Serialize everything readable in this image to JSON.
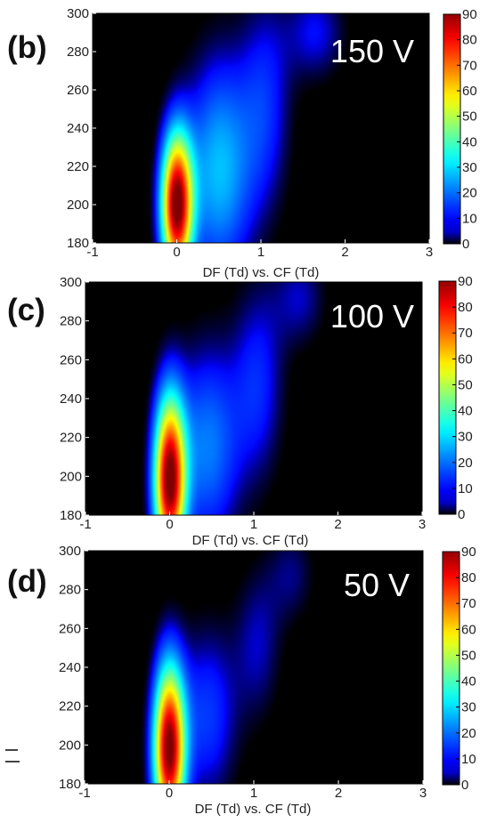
{
  "chart_data": [
    {
      "type": "heatmap",
      "panel_label": "(b)",
      "voltage_label": "150 V",
      "xlabel": "DF (Td) vs. CF (Td)",
      "ylabel": "",
      "xlim": [
        -1,
        3
      ],
      "ylim": [
        180,
        300
      ],
      "xticks": [
        "-1",
        "0",
        "1",
        "2",
        "3"
      ],
      "yticks": [
        "180",
        "200",
        "220",
        "240",
        "260",
        "280",
        "300"
      ],
      "colorbar": {
        "range": [
          0,
          90
        ],
        "ticks": [
          "0",
          "10",
          "20",
          "30",
          "40",
          "50",
          "60",
          "70",
          "80",
          "90"
        ],
        "colormap": "jet"
      },
      "blobs": [
        {
          "x": 0.0,
          "y": 200,
          "sx": 0.13,
          "syLow": 26,
          "syHigh": 26,
          "amp": 90
        },
        {
          "x": 0.5,
          "y": 218,
          "sx": 0.28,
          "syLow": 40,
          "syHigh": 40,
          "amp": 28
        },
        {
          "x": 1.05,
          "y": 252,
          "sx": 0.22,
          "syLow": 40,
          "syHigh": 40,
          "amp": 14
        },
        {
          "x": 1.65,
          "y": 290,
          "sx": 0.25,
          "syLow": 18,
          "syHigh": 18,
          "amp": 12
        }
      ]
    },
    {
      "type": "heatmap",
      "panel_label": "(c)",
      "voltage_label": "100 V",
      "xlabel": "DF (Td) vs. CF (Td)",
      "ylabel": "",
      "xlim": [
        -1,
        3
      ],
      "ylim": [
        180,
        300
      ],
      "xticks": [
        "-1",
        "0",
        "1",
        "2",
        "3"
      ],
      "yticks": [
        "180",
        "200",
        "220",
        "240",
        "260",
        "280",
        "300"
      ],
      "colorbar": {
        "range": [
          0,
          90
        ],
        "ticks": [
          "0",
          "10",
          "20",
          "30",
          "40",
          "50",
          "60",
          "70",
          "80",
          "90"
        ],
        "colormap": "jet"
      },
      "blobs": [
        {
          "x": 0.0,
          "y": 198,
          "sx": 0.13,
          "syLow": 28,
          "syHigh": 30,
          "amp": 90
        },
        {
          "x": 0.45,
          "y": 215,
          "sx": 0.27,
          "syLow": 36,
          "syHigh": 36,
          "amp": 22
        },
        {
          "x": 1.05,
          "y": 248,
          "sx": 0.22,
          "syLow": 36,
          "syHigh": 36,
          "amp": 14
        },
        {
          "x": 1.55,
          "y": 292,
          "sx": 0.22,
          "syLow": 18,
          "syHigh": 18,
          "amp": 10
        }
      ]
    },
    {
      "type": "heatmap",
      "panel_label": "(d)",
      "voltage_label": "50 V",
      "xlabel": "DF (Td) vs. CF (Td)",
      "ylabel": "",
      "xlim": [
        -1,
        3
      ],
      "ylim": [
        180,
        300
      ],
      "xticks": [
        "-1",
        "0",
        "1",
        "2",
        "3"
      ],
      "yticks": [
        "180",
        "200",
        "220",
        "240",
        "260",
        "280",
        "300"
      ],
      "colorbar": {
        "range": [
          0,
          90
        ],
        "ticks": [
          "0",
          "10",
          "20",
          "30",
          "40",
          "50",
          "60",
          "70",
          "80",
          "90"
        ],
        "colormap": "jet"
      },
      "blobs": [
        {
          "x": 0.0,
          "y": 198,
          "sx": 0.13,
          "syLow": 28,
          "syHigh": 30,
          "amp": 90
        },
        {
          "x": 0.45,
          "y": 215,
          "sx": 0.25,
          "syLow": 32,
          "syHigh": 32,
          "amp": 16
        },
        {
          "x": 1.05,
          "y": 252,
          "sx": 0.2,
          "syLow": 28,
          "syHigh": 28,
          "amp": 10
        },
        {
          "x": 1.45,
          "y": 288,
          "sx": 0.2,
          "syLow": 18,
          "syHigh": 18,
          "amp": 8
        }
      ]
    }
  ]
}
